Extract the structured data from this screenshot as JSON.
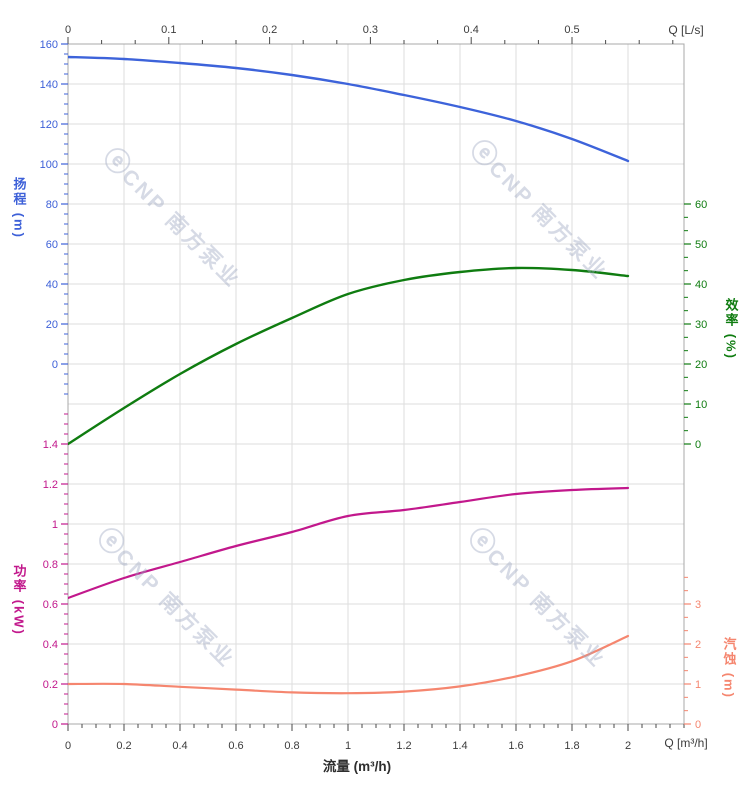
{
  "watermark": {
    "logo": "ⓔ",
    "text": "CNP 南方泵业"
  },
  "axes": {
    "top": {
      "label": "Q [L/s]",
      "tick_labels": [
        "0",
        "0.1",
        "0.2",
        "0.3",
        "0.4",
        "0.5"
      ],
      "tick_values": [
        0,
        0.1,
        0.2,
        0.3,
        0.4,
        0.5
      ],
      "text_color": "#3c3c3c"
    },
    "bottom": {
      "label": "Q [m³/h]",
      "title": "流量 (m³/h)",
      "tick_labels": [
        "0",
        "0.2",
        "0.4",
        "0.6",
        "0.8",
        "1",
        "1.2",
        "1.4",
        "1.6",
        "1.8",
        "2"
      ],
      "tick_values": [
        0,
        0.2,
        0.4,
        0.6,
        0.8,
        1,
        1.2,
        1.4,
        1.6,
        1.8,
        2
      ],
      "text_color": "#3c3c3c"
    },
    "head": {
      "title": "扬程 (m)",
      "color": "#3d60d8",
      "tick_labels": [
        "160",
        "140",
        "120",
        "100",
        "80",
        "60",
        "40",
        "20",
        "0"
      ],
      "tick_values": [
        160,
        140,
        120,
        100,
        80,
        60,
        40,
        20,
        0
      ]
    },
    "power": {
      "title": "功率 (kW)",
      "color": "#c2188c",
      "tick_labels": [
        "1.4",
        "1.2",
        "1",
        "0.8",
        "0.6",
        "0.4",
        "0.2",
        "0"
      ],
      "tick_values": [
        1.4,
        1.2,
        1,
        0.8,
        0.6,
        0.4,
        0.2,
        0
      ]
    },
    "efficiency": {
      "title": "效率 (%)",
      "color": "#0f7c10",
      "tick_labels": [
        "60",
        "50",
        "40",
        "30",
        "20",
        "10",
        "0"
      ],
      "tick_values": [
        60,
        50,
        40,
        30,
        20,
        10,
        0
      ]
    },
    "npsh": {
      "title": "汽蚀 (m)",
      "color": "#f5866f",
      "tick_labels": [
        "3",
        "2",
        "1",
        "0"
      ],
      "tick_values": [
        3,
        2,
        1,
        0
      ]
    }
  },
  "chart_data": {
    "type": "line",
    "title": "",
    "xlabel": "流量 (m³/h)",
    "x2label": "Q [L/s]",
    "x": [
      0,
      0.2,
      0.4,
      0.6,
      0.8,
      1.0,
      1.2,
      1.4,
      1.6,
      1.8,
      2.0
    ],
    "xlim": [
      0,
      2.2
    ],
    "x2lim_ls": [
      0,
      0.611
    ],
    "grid": true,
    "legend": "none",
    "series": [
      {
        "id": "head",
        "name": "扬程 H (m)",
        "axis": "head",
        "color": "#3d63da",
        "width": 2.4,
        "ylim": [
          0,
          160
        ],
        "values": [
          153.5,
          152.5,
          150.5,
          148,
          144.5,
          140,
          134.5,
          128.5,
          121.5,
          112.5,
          101.5
        ]
      },
      {
        "id": "efficiency",
        "name": "效率 η (%)",
        "axis": "efficiency",
        "color": "#0f7c10",
        "width": 2.4,
        "ylim": [
          0,
          60
        ],
        "values": [
          0,
          9,
          17.5,
          25,
          31.5,
          37.5,
          41,
          43,
          44,
          43.5,
          42
        ]
      },
      {
        "id": "power",
        "name": "功率 P (kW)",
        "axis": "power",
        "color": "#c2188c",
        "width": 2.2,
        "ylim": [
          0,
          1.4
        ],
        "values": [
          0.63,
          0.73,
          0.81,
          0.89,
          0.96,
          1.04,
          1.07,
          1.11,
          1.15,
          1.17,
          1.18
        ]
      },
      {
        "id": "npsh",
        "name": "汽蚀 NPSH (m)",
        "axis": "npsh",
        "color": "#f5866f",
        "width": 2.2,
        "ylim": [
          0,
          3
        ],
        "values": [
          1.0,
          1.0,
          0.93,
          0.86,
          0.79,
          0.77,
          0.81,
          0.94,
          1.19,
          1.57,
          2.2
        ]
      }
    ]
  }
}
